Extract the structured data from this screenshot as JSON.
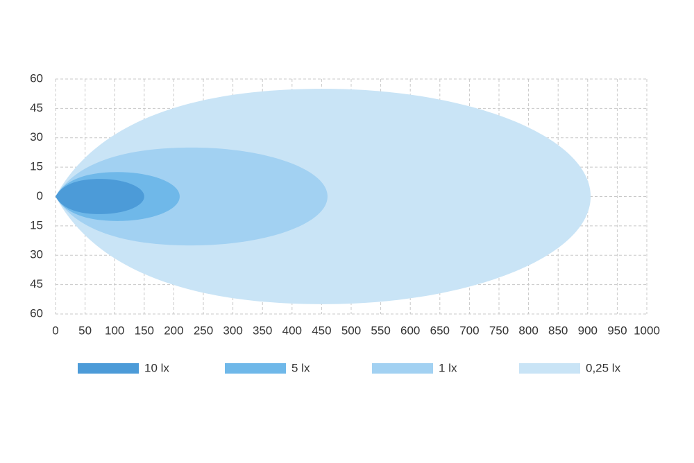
{
  "chart_data": {
    "type": "isolux",
    "xlim": [
      0,
      1000
    ],
    "xticks": [
      0,
      50,
      100,
      150,
      200,
      250,
      300,
      350,
      400,
      450,
      500,
      550,
      600,
      650,
      700,
      750,
      800,
      850,
      900,
      950,
      1000
    ],
    "ylim": [
      -60,
      60
    ],
    "yticks": [
      {
        "value": 60,
        "label": "60"
      },
      {
        "value": 45,
        "label": "45"
      },
      {
        "value": 30,
        "label": "30"
      },
      {
        "value": 15,
        "label": "15"
      },
      0,
      {
        "value": -15,
        "label": "15"
      },
      {
        "value": -30,
        "label": "30"
      },
      {
        "value": -45,
        "label": "45"
      },
      {
        "value": -60,
        "label": "60"
      }
    ],
    "grid": true,
    "series": [
      {
        "name": "10 lx",
        "color": "#4c9bd8",
        "reach": 150,
        "spread": 9
      },
      {
        "name": "5 lx",
        "color": "#6fb8e9",
        "reach": 210,
        "spread": 12.5
      },
      {
        "name": "1 lx",
        "color": "#a2d1f2",
        "reach": 460,
        "spread": 25
      },
      {
        "name": "0,25 lx",
        "color": "#c9e4f6",
        "reach": 905,
        "spread": 55
      }
    ]
  }
}
